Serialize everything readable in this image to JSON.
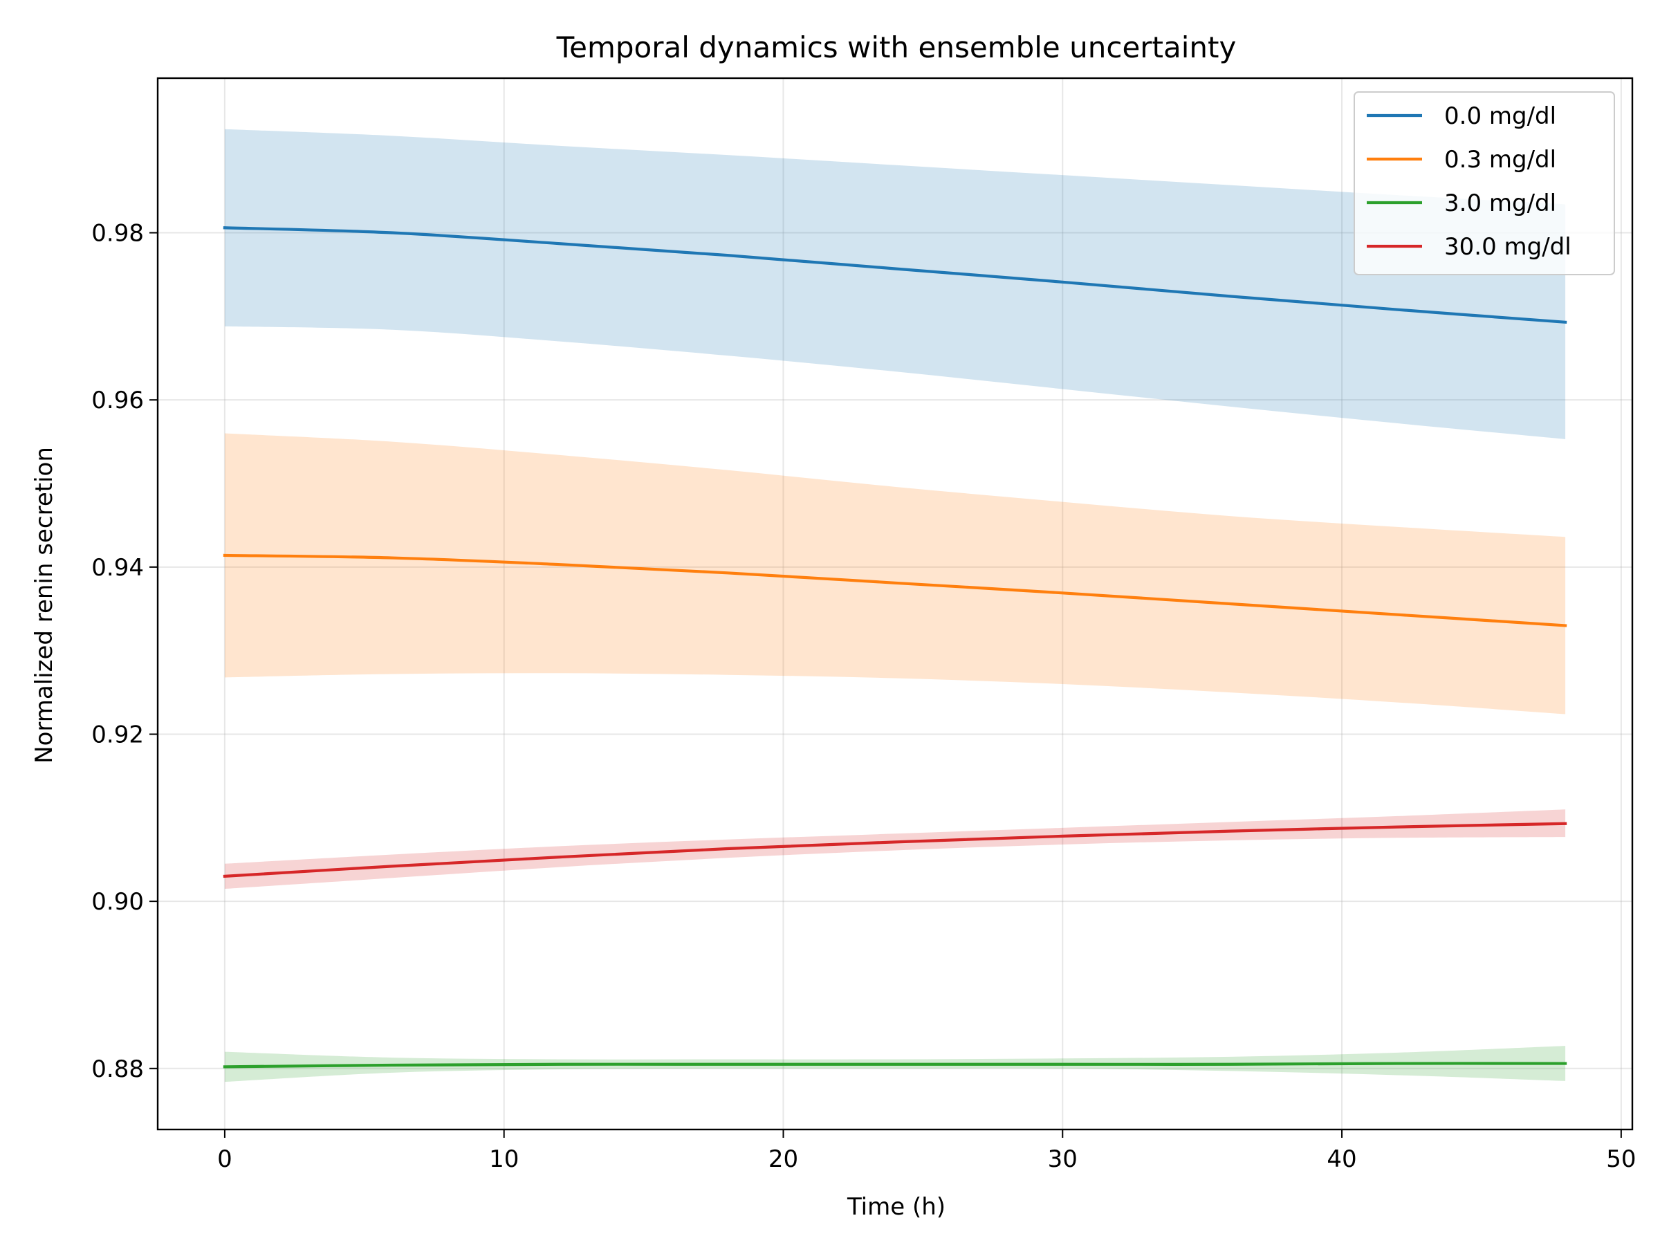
{
  "chart_data": {
    "type": "line",
    "title": "Temporal dynamics with ensemble uncertainty",
    "xlabel": "Time (h)",
    "ylabel": "Normalized renin secretion",
    "xlim": [
      -2.4,
      50.4
    ],
    "ylim": [
      0.8727,
      0.9985
    ],
    "xticks": [
      0,
      10,
      20,
      30,
      40,
      50
    ],
    "yticks": [
      0.88,
      0.9,
      0.92,
      0.94,
      0.96,
      0.98
    ],
    "xtick_labels": [
      "0",
      "10",
      "20",
      "30",
      "40",
      "50"
    ],
    "ytick_labels": [
      "0.88",
      "0.90",
      "0.92",
      "0.94",
      "0.96",
      "0.98"
    ],
    "grid": true,
    "legend_position": "top-right",
    "x": [
      0,
      6,
      12,
      18,
      24,
      30,
      36,
      42,
      48
    ],
    "series": [
      {
        "name": "0.0 mg/dl",
        "color": "#1f77b4",
        "values": [
          0.9806,
          0.98,
          0.9787,
          0.9773,
          0.9757,
          0.9741,
          0.9724,
          0.9708,
          0.9693
        ],
        "lower": [
          0.9688,
          0.9684,
          0.967,
          0.9653,
          0.9634,
          0.9613,
          0.9592,
          0.9572,
          0.9553
        ],
        "upper": [
          0.9924,
          0.9916,
          0.9904,
          0.9893,
          0.9881,
          0.9869,
          0.9857,
          0.9845,
          0.9834
        ]
      },
      {
        "name": "0.3 mg/dl",
        "color": "#ff7f0e",
        "values": [
          0.9414,
          0.9411,
          0.9403,
          0.9393,
          0.9381,
          0.9369,
          0.9356,
          0.9343,
          0.933
        ],
        "lower": [
          0.9268,
          0.9272,
          0.9273,
          0.9271,
          0.9267,
          0.926,
          0.925,
          0.9238,
          0.9224
        ],
        "upper": [
          0.956,
          0.955,
          0.9534,
          0.9516,
          0.9496,
          0.9478,
          0.9461,
          0.9448,
          0.9436
        ]
      },
      {
        "name": "3.0 mg/dl",
        "color": "#2ca02c",
        "values": [
          0.8802,
          0.8804,
          0.8805,
          0.8805,
          0.8805,
          0.8805,
          0.8805,
          0.8806,
          0.8806
        ],
        "lower": [
          0.8784,
          0.8795,
          0.8799,
          0.88,
          0.88,
          0.88,
          0.8797,
          0.8792,
          0.8785
        ],
        "upper": [
          0.882,
          0.8813,
          0.8811,
          0.8811,
          0.8811,
          0.8812,
          0.8814,
          0.8819,
          0.8827
        ]
      },
      {
        "name": "30.0 mg/dl",
        "color": "#d62728",
        "values": [
          0.903,
          0.9042,
          0.9053,
          0.9063,
          0.9071,
          0.9078,
          0.9084,
          0.9089,
          0.9093
        ],
        "lower": [
          0.9015,
          0.9028,
          0.9041,
          0.9052,
          0.9061,
          0.9068,
          0.9073,
          0.9076,
          0.9077
        ],
        "upper": [
          0.9045,
          0.9056,
          0.9066,
          0.9074,
          0.9081,
          0.9088,
          0.9095,
          0.9102,
          0.911
        ]
      }
    ]
  }
}
